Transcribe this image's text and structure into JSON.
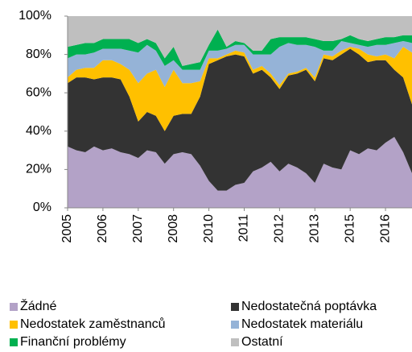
{
  "chart_data": {
    "type": "stacked_area",
    "categories": [
      "2005",
      null,
      null,
      null,
      "2006",
      null,
      null,
      null,
      "2007",
      null,
      null,
      null,
      "2008",
      null,
      null,
      null,
      "2010",
      null,
      null,
      null,
      "2011",
      null,
      null,
      null,
      "2012",
      null,
      null,
      null,
      "2013",
      null,
      null,
      null,
      "2015",
      null,
      null,
      null,
      "2016",
      null,
      null,
      null
    ],
    "series": [
      {
        "name": "Žádné",
        "color": "#b3a2c7",
        "values": [
          32,
          30,
          29,
          32,
          30,
          31,
          29,
          28,
          26,
          30,
          29,
          23,
          28,
          29,
          28,
          22,
          14,
          9,
          9,
          12,
          13,
          19,
          21,
          24,
          19,
          23,
          21,
          18,
          13,
          23,
          21,
          20,
          30,
          28,
          31,
          30,
          34,
          37,
          29,
          18
        ]
      },
      {
        "name": "Nedostatečná poptávka",
        "color": "#333333",
        "values": [
          33,
          38,
          39,
          35,
          38,
          37,
          38,
          30,
          19,
          20,
          19,
          17,
          20,
          20,
          21,
          36,
          61,
          68,
          70,
          68,
          66,
          51,
          51,
          44,
          43,
          46,
          49,
          54,
          53,
          55,
          56,
          60,
          53,
          52,
          45,
          47,
          43,
          35,
          39,
          36
        ]
      },
      {
        "name": "Nedostatek zaměstnanců",
        "color": "#ffc000",
        "values": [
          3,
          4,
          5,
          6,
          9,
          9,
          8,
          14,
          20,
          20,
          24,
          23,
          24,
          16,
          16,
          8,
          3,
          1,
          1,
          2,
          2,
          2,
          2,
          2,
          2,
          1,
          1,
          1,
          2,
          2,
          2,
          2,
          1,
          3,
          4,
          2,
          3,
          6,
          16,
          27
        ]
      },
      {
        "name": "Nedostatek materiálu",
        "color": "#95b3d7",
        "values": [
          10,
          8,
          7,
          8,
          6,
          6,
          8,
          10,
          16,
          15,
          10,
          11,
          5,
          7,
          7,
          6,
          4,
          4,
          3,
          3,
          4,
          8,
          6,
          10,
          20,
          16,
          14,
          12,
          16,
          2,
          3,
          5,
          2,
          2,
          4,
          6,
          5,
          8,
          3,
          5
        ]
      },
      {
        "name": "Finanční problémy",
        "color": "#00b050",
        "values": [
          6,
          5,
          6,
          5,
          5,
          5,
          5,
          6,
          5,
          3,
          4,
          4,
          7,
          2,
          3,
          4,
          3,
          11,
          1,
          2,
          1,
          2,
          2,
          8,
          5,
          3,
          4,
          4,
          4,
          5,
          5,
          1,
          4,
          3,
          3,
          3,
          4,
          3,
          3,
          4
        ]
      },
      {
        "name": "Ostatní",
        "color": "#bfbfbf",
        "values": [
          16,
          15,
          14,
          14,
          12,
          12,
          12,
          12,
          14,
          12,
          14,
          22,
          16,
          26,
          25,
          24,
          15,
          7,
          16,
          13,
          14,
          18,
          18,
          12,
          11,
          11,
          11,
          11,
          12,
          13,
          13,
          12,
          10,
          12,
          13,
          12,
          11,
          11,
          10,
          10
        ]
      }
    ],
    "ylim": [
      0,
      100
    ],
    "yticks": [
      {
        "value": 0,
        "label": "0%"
      },
      {
        "value": 20,
        "label": "20%"
      },
      {
        "value": 40,
        "label": "40%"
      },
      {
        "value": 60,
        "label": "60%"
      },
      {
        "value": 80,
        "label": "80%"
      },
      {
        "value": 100,
        "label": "100%"
      }
    ]
  }
}
